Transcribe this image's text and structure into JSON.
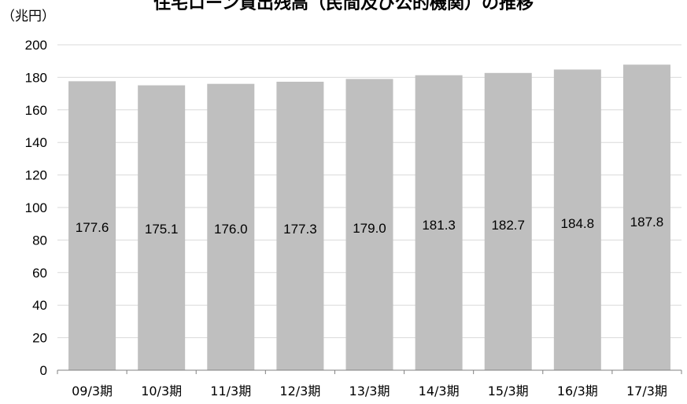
{
  "chart_data": {
    "type": "bar",
    "title": "住宅ローン貸出残高（民間及び公的機関）の推移",
    "ylabel": "（兆円）",
    "xlabel": "",
    "categories": [
      "09/3期",
      "10/3期",
      "11/3期",
      "12/3期",
      "13/3期",
      "14/3期",
      "15/3期",
      "16/3期",
      "17/3期"
    ],
    "values": [
      177.6,
      175.1,
      176.0,
      177.3,
      179.0,
      181.3,
      182.7,
      184.8,
      187.8
    ],
    "data_labels": [
      "177.6",
      "175.1",
      "176.0",
      "177.3",
      "179.0",
      "181.3",
      "182.7",
      "184.8",
      "187.8"
    ],
    "ylim": [
      0,
      200
    ],
    "yticks": [
      0,
      20,
      40,
      60,
      80,
      100,
      120,
      140,
      160,
      180,
      200
    ],
    "grid": true,
    "bar_color": "#bfbfbf",
    "grid_color": "#d9d9d9"
  }
}
